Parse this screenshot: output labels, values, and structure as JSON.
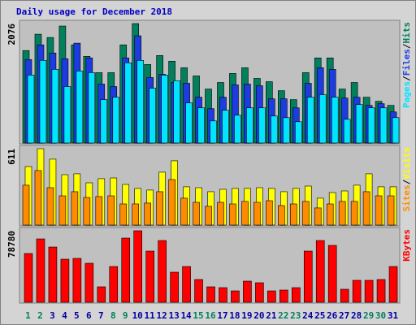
{
  "chart_data": [
    {
      "type": "bar",
      "title": "Daily usage for December 2018",
      "title_color": "#0000c0",
      "ylim": [
        0,
        2076
      ],
      "yticks": [
        2076
      ],
      "legend_separator": "/",
      "series": [
        {
          "name": "Hits",
          "color": "#00805c",
          "values": [
            1607,
            1891,
            1834,
            2033,
            1706,
            1507,
            1223,
            1223,
            1706,
            2076,
            1365,
            1521,
            1422,
            1308,
            1166,
            938,
            1052,
            1209,
            1308,
            1123,
            1066,
            910,
            754,
            1223,
            1479,
            1479,
            938,
            1052,
            796,
            725,
            654
          ]
        },
        {
          "name": "Files",
          "color": "#1c3ce0",
          "values": [
            1450,
            1706,
            1564,
            1465,
            1735,
            1479,
            1024,
            981,
            1479,
            1863,
            1138,
            1194,
            1052,
            1038,
            796,
            597,
            796,
            1010,
            1024,
            995,
            768,
            768,
            611,
            1038,
            1308,
            1280,
            782,
            796,
            654,
            683,
            540
          ]
        },
        {
          "name": "Pages",
          "color": "#00e4ff",
          "values": [
            1180,
            1436,
            1280,
            981,
            1251,
            1223,
            754,
            796,
            1394,
            1436,
            953,
            1180,
            1081,
            697,
            611,
            384,
            569,
            483,
            611,
            611,
            469,
            441,
            370,
            796,
            839,
            796,
            412,
            668,
            611,
            611,
            441
          ]
        }
      ]
    },
    {
      "type": "bar",
      "ylim": [
        0,
        611
      ],
      "yticks": [
        611
      ],
      "legend_separator": "/",
      "series": [
        {
          "name": "Visits",
          "color": "#ffff00",
          "values": [
            468,
            611,
            527,
            403,
            410,
            338,
            371,
            377,
            325,
            293,
            280,
            423,
            514,
            306,
            299,
            267,
            286,
            293,
            293,
            299,
            293,
            267,
            293,
            312,
            215,
            260,
            273,
            319,
            410,
            306,
            306
          ]
        },
        {
          "name": "Sites",
          "color": "#ff8c00",
          "values": [
            319,
            436,
            299,
            234,
            267,
            221,
            228,
            234,
            169,
            169,
            176,
            267,
            364,
            215,
            182,
            150,
            182,
            169,
            189,
            182,
            195,
            156,
            169,
            189,
            137,
            169,
            189,
            189,
            267,
            234,
            234
          ]
        }
      ]
    },
    {
      "type": "bar",
      "ylim": [
        0,
        78780
      ],
      "yticks": [
        78780
      ],
      "categories": [
        "1",
        "2",
        "3",
        "4",
        "5",
        "6",
        "7",
        "8",
        "9",
        "10",
        "11",
        "12",
        "13",
        "14",
        "15",
        "16",
        "17",
        "18",
        "19",
        "20",
        "21",
        "22",
        "23",
        "24",
        "25",
        "26",
        "27",
        "28",
        "29",
        "30",
        "31"
      ],
      "category_label_colors": [
        "#00805c",
        "#00805c",
        "#0000a0",
        "#0000a0",
        "#0000a0",
        "#0000a0",
        "#0000a0",
        "#00805c",
        "#00805c",
        "#0000a0",
        "#0000a0",
        "#0000a0",
        "#0000a0",
        "#0000a0",
        "#00805c",
        "#00805c",
        "#0000a0",
        "#0000a0",
        "#0000a0",
        "#0000a0",
        "#0000a0",
        "#00805c",
        "#00805c",
        "#0000a0",
        "#0000a0",
        "#0000a0",
        "#0000a0",
        "#0000a0",
        "#00805c",
        "#00805c",
        "#0000a0"
      ],
      "series": [
        {
          "name": "KBytes",
          "color": "#ff0000",
          "values": [
            53700,
            69810,
            60860,
            47435,
            48330,
            42960,
            17005,
            39380,
            70705,
            78780,
            56385,
            68020,
            33115,
            39380,
            25060,
            17005,
            16110,
            12530,
            23270,
            21480,
            12530,
            13425,
            16110,
            56385,
            68020,
            62650,
            14320,
            24165,
            24165,
            25060,
            39380
          ]
        }
      ]
    }
  ]
}
